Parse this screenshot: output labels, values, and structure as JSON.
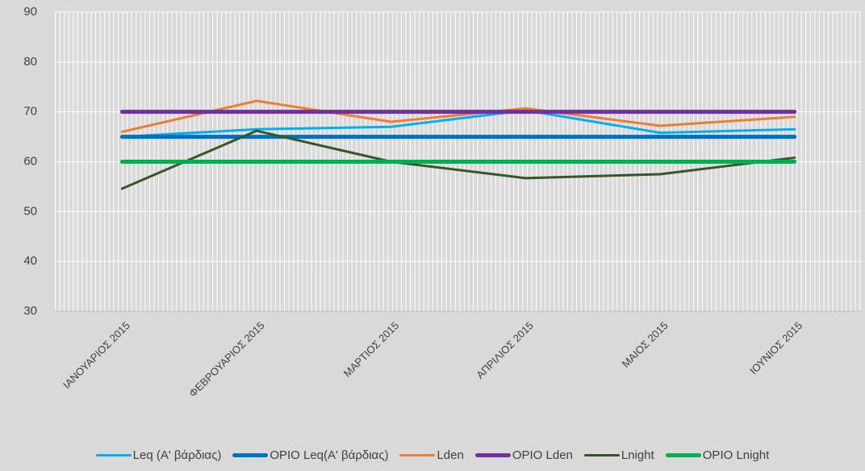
{
  "chart_data": {
    "type": "line",
    "categories": [
      "ΙΑΝΟΥΑΡΙΟΣ 2015",
      "ΦΕΒΡΟΥΑΡΙΟΣ 2015",
      "ΜΑΡΤΙΟΣ 2015",
      "ΑΠΡΙΛΙΟΣ 2015",
      "ΜΑΙΟΣ 2015",
      "ΙΟΥΝΙΟΣ 2015"
    ],
    "series": [
      {
        "name": "Leq  (Α' βάρδιας)",
        "color": "#00b0f0",
        "values": [
          65,
          66.5,
          67,
          70.3,
          65.8,
          66.5
        ]
      },
      {
        "name": "ΟΡΙΟ Leq(Α' βάρδιας)",
        "color": "#0070c0",
        "values": [
          65,
          65,
          65,
          65,
          65,
          65
        ]
      },
      {
        "name": "Lden",
        "color": "#ed7d31",
        "values": [
          66,
          72.2,
          68,
          70.7,
          67.2,
          69
        ]
      },
      {
        "name": "ΟΡΙΟ Lden",
        "color": "#7030a0",
        "values": [
          70,
          70,
          70,
          70,
          70,
          70
        ]
      },
      {
        "name": "Lnight",
        "color": "#375623",
        "values": [
          54.6,
          66.2,
          60,
          56.7,
          57.5,
          60.8
        ]
      },
      {
        "name": "ΟΡΙΟ Lnight",
        "color": "#00b050",
        "values": [
          60,
          60,
          60,
          60,
          60,
          60
        ]
      }
    ],
    "ylim": [
      30,
      90
    ],
    "yticks": [
      30,
      40,
      50,
      60,
      70,
      80,
      90
    ],
    "grid": true,
    "legend": "bottom"
  }
}
